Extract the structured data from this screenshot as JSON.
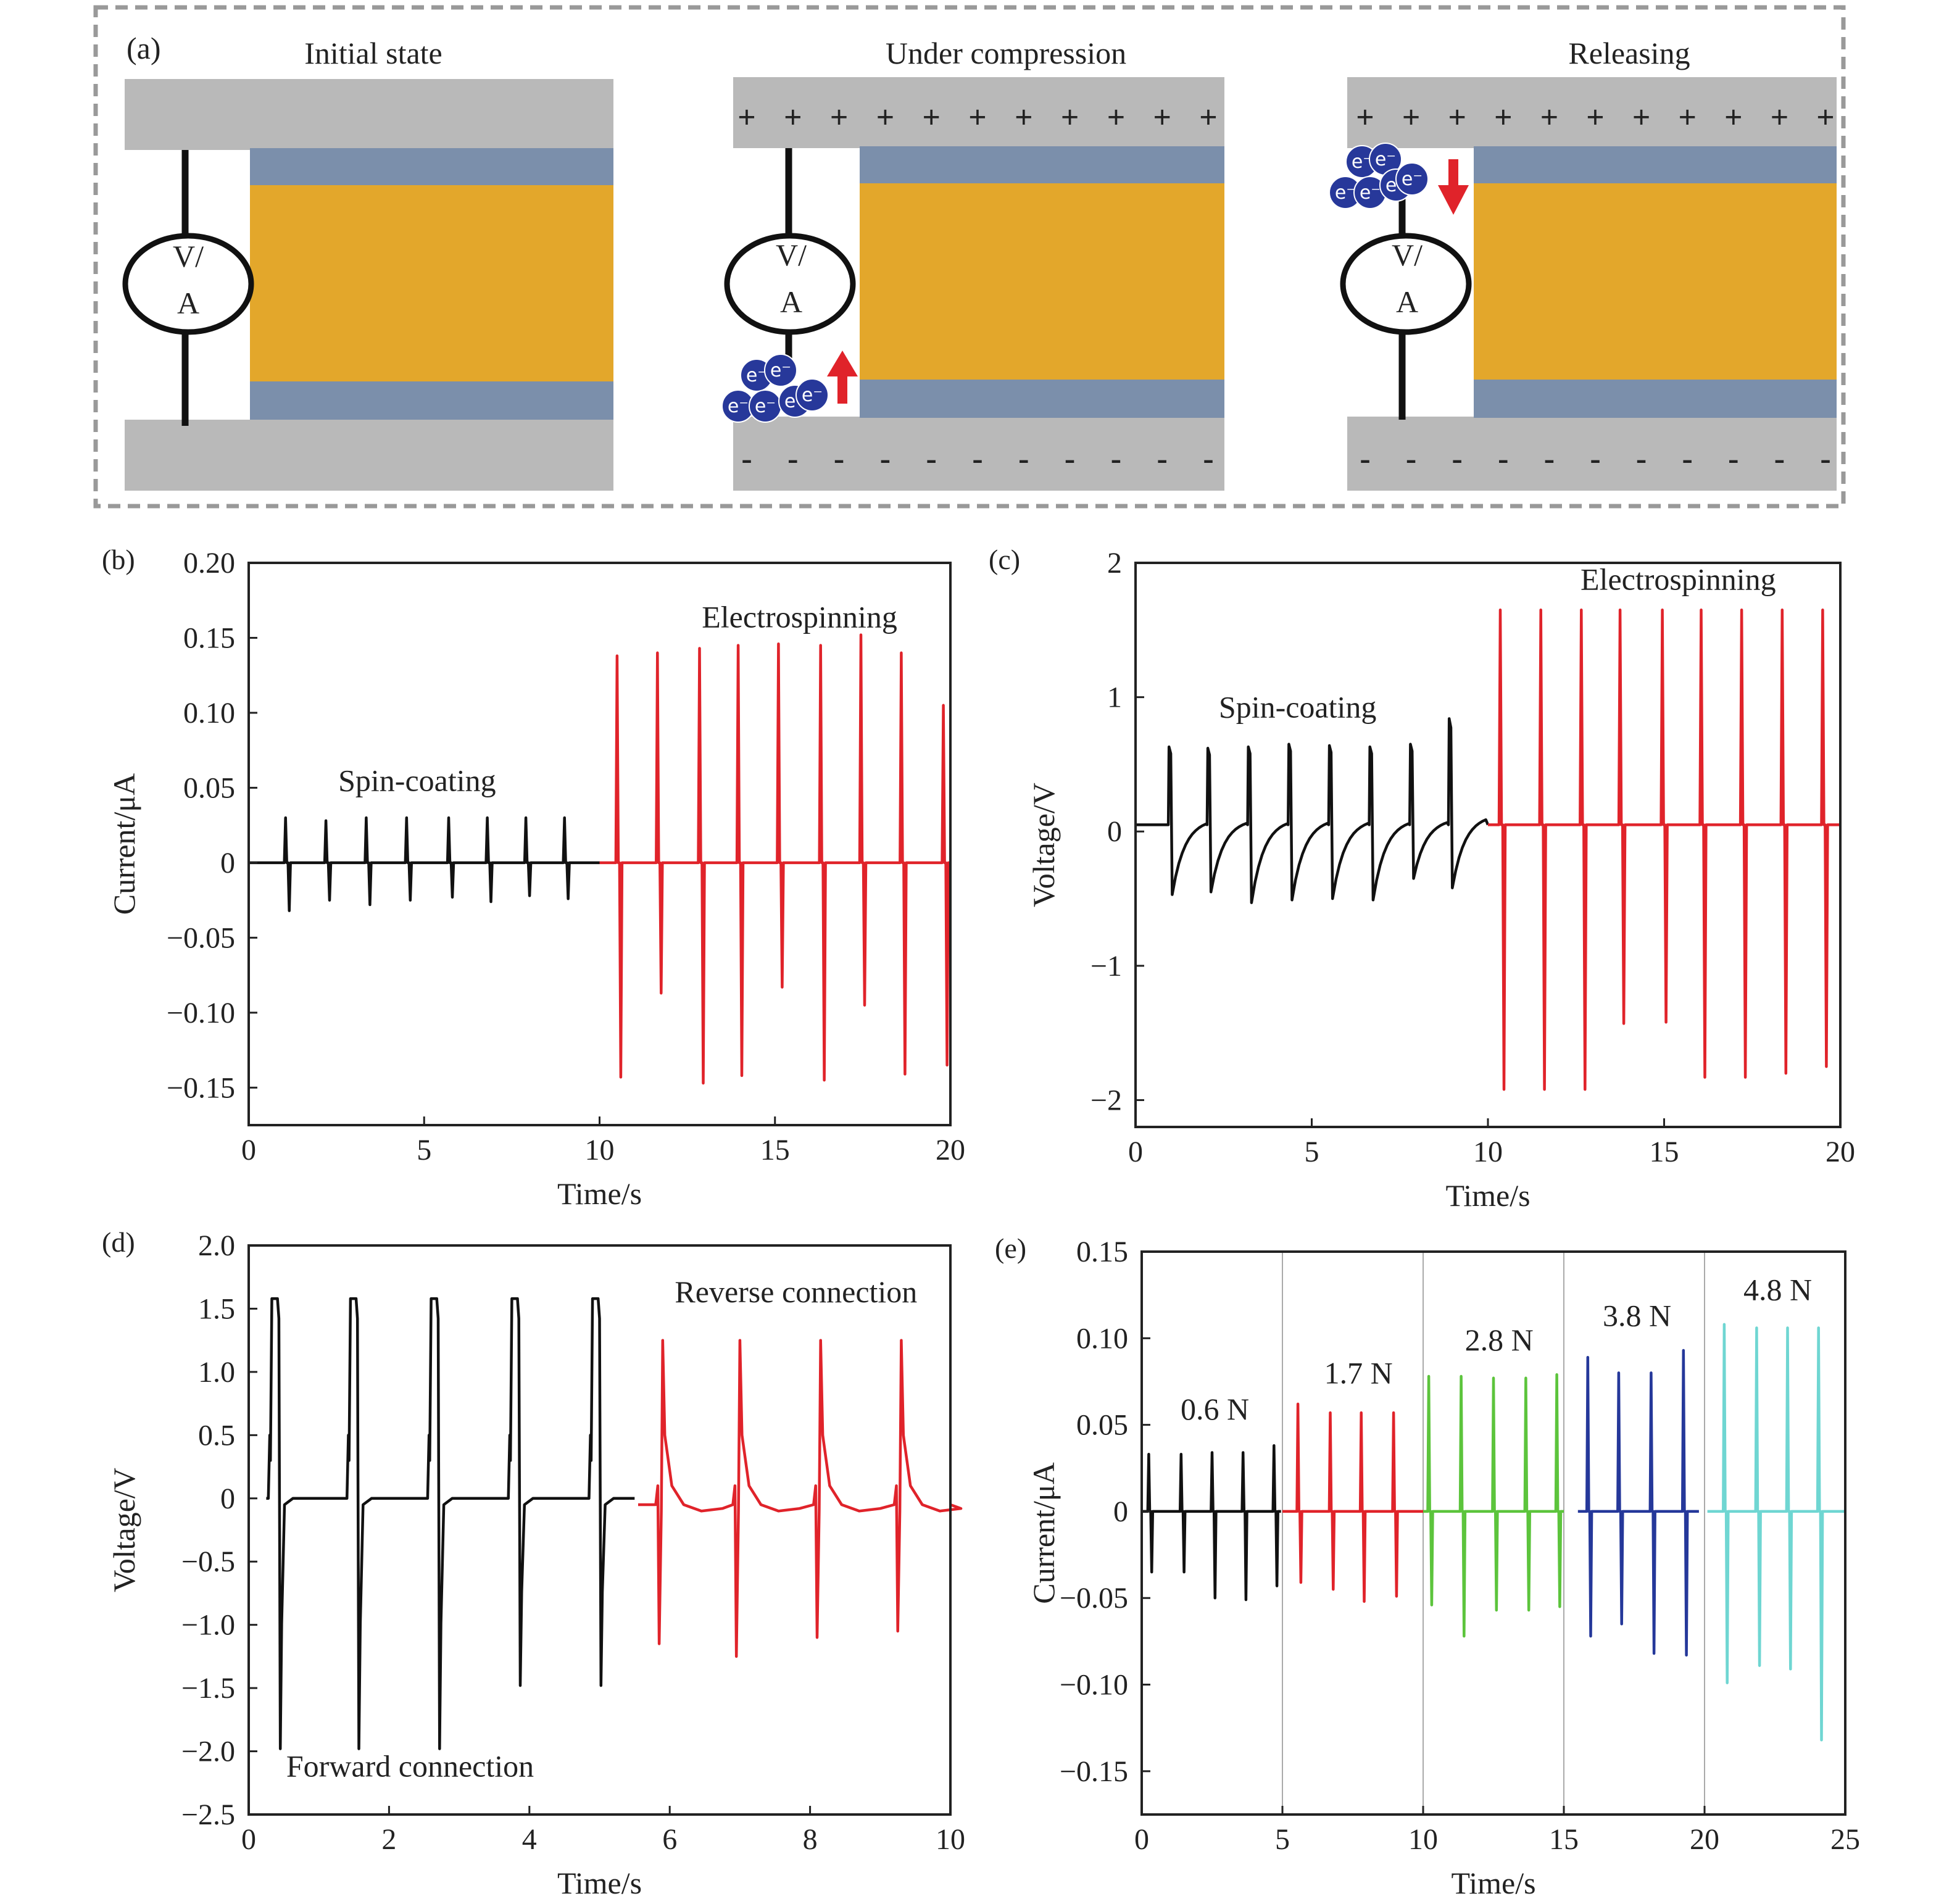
{
  "colors": {
    "plate": "#b9b9b9",
    "electrode": "#7b8fab",
    "film": "#e3a72b",
    "electron": "#27389a",
    "arrow": "#e0232a",
    "frame": "#999999",
    "spin_coating": "#111111",
    "electrospinning": "#e0232a",
    "forward": "#111111",
    "reverse": "#e0232a",
    "f06": "#111111",
    "f17": "#e0232a",
    "f28": "#5cc43c",
    "f38": "#25389a",
    "f48": "#6fd6d2"
  },
  "schematic": {
    "panel_label": "(a)",
    "stages": [
      {
        "title": "Initial state",
        "meter_top": "V/",
        "meter_bottom": "A"
      },
      {
        "title": "Under compression",
        "meter_top": "V/",
        "meter_bottom": "A",
        "charge_top": "+",
        "charge_bottom": "-",
        "electron": "e⁻",
        "arrow": "up"
      },
      {
        "title": "Releasing",
        "meter_top": "V/",
        "meter_bottom": "A",
        "charge_top": "+",
        "charge_bottom": "-",
        "electron": "e⁻",
        "arrow": "down"
      }
    ]
  },
  "chart_data": [
    {
      "panel_label": "(b)",
      "type": "line",
      "xlabel": "Time/s",
      "ylabel": "Current/μA",
      "xlim": [
        0,
        20
      ],
      "ylim": [
        -0.175,
        0.2
      ],
      "xticks": [
        0,
        5,
        10,
        15,
        20
      ],
      "xtick_labels": [
        "0",
        "5",
        "10",
        "15",
        "20"
      ],
      "yticks": [
        -0.15,
        -0.1,
        -0.05,
        0,
        0.05,
        0.1,
        0.15,
        0.2
      ],
      "ytick_labels": [
        "−0.15",
        "−0.10",
        "−0.05",
        "0",
        "0.05",
        "0.10",
        "0.15",
        "0.20"
      ],
      "annotations": [
        {
          "text": "Spin-coating",
          "x": 4.8,
          "y": 0.048
        },
        {
          "text": "Electrospinning",
          "x": 15.7,
          "y": 0.157
        }
      ],
      "series": [
        {
          "label": "Spin-coating",
          "color_key": "spin_coating",
          "x_start": 0,
          "x_end": 10,
          "baseline": 0,
          "style": "spike",
          "pulses": [
            [
              1.05,
              0.03,
              -0.032
            ],
            [
              2.2,
              0.028,
              -0.025
            ],
            [
              3.35,
              0.03,
              -0.028
            ],
            [
              4.5,
              0.03,
              -0.025
            ],
            [
              5.7,
              0.03,
              -0.023
            ],
            [
              6.8,
              0.03,
              -0.026
            ],
            [
              7.9,
              0.03,
              -0.022
            ],
            [
              9.0,
              0.03,
              -0.024
            ]
          ]
        },
        {
          "label": "Electrospinning",
          "color_key": "electrospinning",
          "x_start": 10,
          "x_end": 20,
          "baseline": 0,
          "style": "spike",
          "pulses": [
            [
              10.5,
              0.138,
              -0.143
            ],
            [
              11.65,
              0.14,
              -0.087
            ],
            [
              12.85,
              0.143,
              -0.147
            ],
            [
              13.95,
              0.145,
              -0.142
            ],
            [
              15.1,
              0.146,
              -0.083
            ],
            [
              16.3,
              0.145,
              -0.145
            ],
            [
              17.45,
              0.152,
              -0.095
            ],
            [
              18.6,
              0.14,
              -0.141
            ],
            [
              19.8,
              0.105,
              -0.135
            ]
          ]
        }
      ]
    },
    {
      "panel_label": "(c)",
      "type": "line",
      "xlabel": "Time/s",
      "ylabel": "Voltage/V",
      "xlim": [
        0,
        20
      ],
      "ylim": [
        -2.2,
        2
      ],
      "xticks": [
        0,
        5,
        10,
        15,
        20
      ],
      "xtick_labels": [
        "0",
        "5",
        "10",
        "15",
        "20"
      ],
      "yticks": [
        -2,
        -1,
        0,
        1,
        2
      ],
      "ytick_labels": [
        "−2",
        "−1",
        "0",
        "1",
        "2"
      ],
      "annotations": [
        {
          "text": "Spin-coating",
          "x": 4.6,
          "y": 0.85
        },
        {
          "text": "Electrospinning",
          "x": 15.4,
          "y": 1.8
        }
      ],
      "series": [
        {
          "label": "Spin-coating",
          "color_key": "spin_coating",
          "x_start": 0,
          "x_end": 10,
          "baseline": 0.05,
          "style": "charge",
          "pulses": [
            [
              0.95,
              0.63,
              -0.47
            ],
            [
              2.05,
              0.62,
              -0.45
            ],
            [
              3.2,
              0.63,
              -0.53
            ],
            [
              4.35,
              0.65,
              -0.51
            ],
            [
              5.5,
              0.64,
              -0.5
            ],
            [
              6.65,
              0.63,
              -0.51
            ],
            [
              7.8,
              0.65,
              -0.35
            ],
            [
              8.9,
              0.84,
              -0.42
            ]
          ]
        },
        {
          "label": "Electrospinning",
          "color_key": "electrospinning",
          "x_start": 10,
          "x_end": 20,
          "baseline": 0.05,
          "style": "spike",
          "pulses": [
            [
              10.35,
              1.65,
              -1.92
            ],
            [
              11.5,
              1.65,
              -1.92
            ],
            [
              12.65,
              1.65,
              -1.92
            ],
            [
              13.75,
              1.65,
              -1.43
            ],
            [
              14.95,
              1.65,
              -1.42
            ],
            [
              16.05,
              1.65,
              -1.83
            ],
            [
              17.2,
              1.65,
              -1.83
            ],
            [
              18.35,
              1.65,
              -1.8
            ],
            [
              19.5,
              1.65,
              -1.75
            ]
          ]
        }
      ]
    },
    {
      "panel_label": "(d)",
      "type": "line",
      "xlabel": "Time/s",
      "ylabel": "Voltage/V",
      "xlim": [
        0,
        10
      ],
      "ylim": [
        -2.5,
        2
      ],
      "xticks": [
        0,
        2,
        4,
        6,
        8,
        10
      ],
      "xtick_labels": [
        "0",
        "2",
        "4",
        "6",
        "8",
        "10"
      ],
      "yticks": [
        -2.5,
        -2,
        -1.5,
        -1,
        -0.5,
        0,
        0.5,
        1,
        1.5,
        2
      ],
      "ytick_labels": [
        "−2.5",
        "−2.0",
        "−1.5",
        "−1.0",
        "−0.5",
        "0",
        "0.5",
        "1.0",
        "1.5",
        "2.0"
      ],
      "annotations": [
        {
          "text": "Reverse connection",
          "x": 7.8,
          "y": 1.55
        },
        {
          "text": "Forward connection",
          "x": 2.3,
          "y": -2.2
        }
      ],
      "series": [
        {
          "label": "Forward connection",
          "color_key": "forward",
          "x_start": 0.25,
          "x_end": 5.5,
          "baseline": 0,
          "style": "forward",
          "pulses": [
            [
              0.33,
              1.58,
              -1.98
            ],
            [
              1.45,
              1.58,
              -1.98
            ],
            [
              2.6,
              1.58,
              -1.98
            ],
            [
              3.75,
              1.58,
              -1.48
            ],
            [
              4.9,
              1.58,
              -1.48
            ]
          ]
        },
        {
          "label": "Reverse connection",
          "color_key": "reverse",
          "x_start": 5.55,
          "x_end": 10,
          "baseline": -0.05,
          "style": "reverse",
          "pulses": [
            [
              5.85,
              1.25,
              -1.15
            ],
            [
              6.95,
              1.25,
              -1.25
            ],
            [
              8.1,
              1.25,
              -1.1
            ],
            [
              9.25,
              1.25,
              -1.05
            ]
          ]
        }
      ]
    },
    {
      "panel_label": "(e)",
      "type": "line",
      "xlabel": "Time/s",
      "ylabel": "Current/μA",
      "xlim": [
        0,
        25
      ],
      "ylim": [
        -0.175,
        0.15
      ],
      "xticks": [
        0,
        5,
        10,
        15,
        20,
        25
      ],
      "xtick_labels": [
        "0",
        "5",
        "10",
        "15",
        "20",
        "25"
      ],
      "yticks": [
        -0.15,
        -0.1,
        -0.05,
        0,
        0.05,
        0.1,
        0.15
      ],
      "ytick_labels": [
        "−0.15",
        "−0.10",
        "−0.05",
        "0",
        "0.05",
        "0.10",
        "0.15"
      ],
      "vlines": [
        5,
        10,
        15,
        20
      ],
      "annotations": [
        {
          "text": "0.6 N",
          "x": 2.6,
          "y": 0.053
        },
        {
          "text": "1.7 N",
          "x": 7.7,
          "y": 0.074
        },
        {
          "text": "2.8 N",
          "x": 12.7,
          "y": 0.093
        },
        {
          "text": "3.8 N",
          "x": 17.6,
          "y": 0.107
        },
        {
          "text": "4.8 N",
          "x": 22.6,
          "y": 0.122
        }
      ],
      "series": [
        {
          "label": "0.6 N",
          "color_key": "f06",
          "x_start": 0,
          "x_end": 4.95,
          "baseline": 0,
          "style": "spike",
          "pulses": [
            [
              0.25,
              0.033,
              -0.035
            ],
            [
              1.4,
              0.033,
              -0.035
            ],
            [
              2.5,
              0.034,
              -0.05
            ],
            [
              3.6,
              0.034,
              -0.051
            ],
            [
              4.7,
              0.038,
              -0.043
            ]
          ]
        },
        {
          "label": "1.7 N",
          "color_key": "f17",
          "x_start": 5.0,
          "x_end": 10.0,
          "baseline": 0,
          "style": "spike",
          "pulses": [
            [
              5.55,
              0.062,
              -0.041
            ],
            [
              6.7,
              0.057,
              -0.045
            ],
            [
              7.8,
              0.057,
              -0.052
            ],
            [
              8.95,
              0.057,
              -0.049
            ]
          ]
        },
        {
          "label": "2.8 N",
          "color_key": "f28",
          "x_start": 10.0,
          "x_end": 15.0,
          "baseline": 0,
          "style": "spike",
          "pulses": [
            [
              10.2,
              0.078,
              -0.054
            ],
            [
              11.35,
              0.078,
              -0.072
            ],
            [
              12.5,
              0.077,
              -0.057
            ],
            [
              13.65,
              0.077,
              -0.057
            ],
            [
              14.75,
              0.079,
              -0.055
            ]
          ]
        },
        {
          "label": "3.8 N",
          "color_key": "f38",
          "x_start": 15.5,
          "x_end": 19.8,
          "baseline": 0,
          "style": "spike",
          "pulses": [
            [
              15.85,
              0.089,
              -0.072
            ],
            [
              16.95,
              0.08,
              -0.065
            ],
            [
              18.1,
              0.08,
              -0.082
            ],
            [
              19.25,
              0.093,
              -0.083
            ]
          ]
        },
        {
          "label": "4.8 N",
          "color_key": "f48",
          "x_start": 20.1,
          "x_end": 25,
          "baseline": 0,
          "style": "spike",
          "pulses": [
            [
              20.7,
              0.108,
              -0.099
            ],
            [
              21.85,
              0.106,
              -0.089
            ],
            [
              22.95,
              0.106,
              -0.091
            ],
            [
              24.05,
              0.106,
              -0.132
            ]
          ]
        }
      ]
    }
  ]
}
